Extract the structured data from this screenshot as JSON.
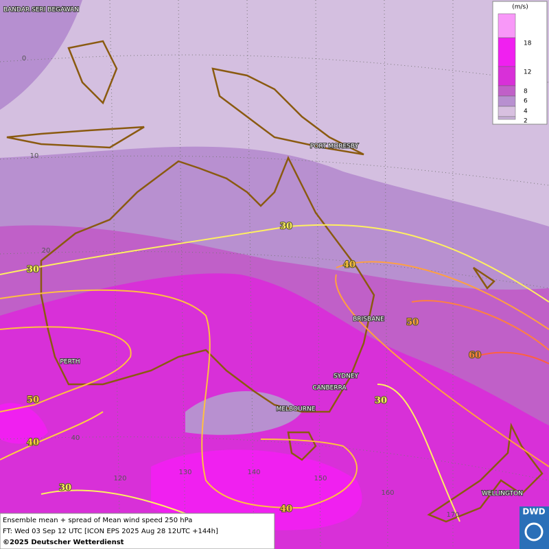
{
  "map": {
    "grid_labels": [
      "0",
      "10",
      "20",
      "40",
      "120",
      "130",
      "140",
      "150",
      "160",
      "170"
    ],
    "cities": [
      "BANDAR SERI BEGAWAN",
      "PORT MORESBY",
      "BRISBANE",
      "PERTH",
      "SYDNEY",
      "CANBERRA",
      "MELBOURNE",
      "WELLINGTON"
    ],
    "contour_labels": [
      30,
      30,
      40,
      50,
      60,
      50,
      40,
      30,
      30,
      40
    ],
    "legend": {
      "unit": "(m/s)",
      "ticks": [
        2,
        4,
        6,
        8,
        12,
        18
      ],
      "colors": [
        "#f898f8",
        "#f020f0",
        "#d830d8",
        "#c060c8",
        "#b890d0",
        "#d8c0e0",
        "#c8b0d8"
      ]
    },
    "footer": {
      "line1": "Ensemble mean + spread of Mean wind speed 250 hPa",
      "line2": "FT: Wed 03 Sep 12 UTC [ICON EPS 2025 Aug 28 12UTC +144h]",
      "line3": "©2025 Deutscher Wetterdienst"
    },
    "logo": "DWD"
  }
}
